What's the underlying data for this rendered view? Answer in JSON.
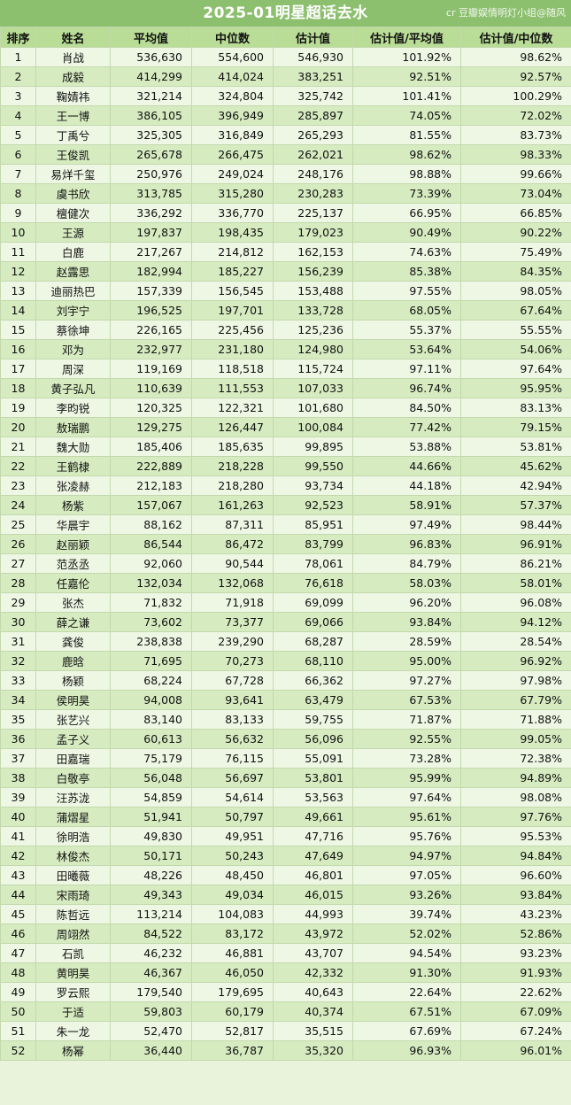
{
  "header": {
    "title": "2025-01明星超话去水",
    "credit": "cr 豆瓣娱情明灯小组@随风"
  },
  "table": {
    "columns": [
      "排序",
      "姓名",
      "平均值",
      "中位数",
      "估计值",
      "估计值/平均值",
      "估计值/中位数"
    ],
    "rows": [
      [
        "1",
        "肖战",
        "536,630",
        "554,600",
        "546,930",
        "101.92%",
        "98.62%"
      ],
      [
        "2",
        "成毅",
        "414,299",
        "414,024",
        "383,251",
        "92.51%",
        "92.57%"
      ],
      [
        "3",
        "鞠婧祎",
        "321,214",
        "324,804",
        "325,742",
        "101.41%",
        "100.29%"
      ],
      [
        "4",
        "王一博",
        "386,105",
        "396,949",
        "285,897",
        "74.05%",
        "72.02%"
      ],
      [
        "5",
        "丁禹兮",
        "325,305",
        "316,849",
        "265,293",
        "81.55%",
        "83.73%"
      ],
      [
        "6",
        "王俊凯",
        "265,678",
        "266,475",
        "262,021",
        "98.62%",
        "98.33%"
      ],
      [
        "7",
        "易烊千玺",
        "250,976",
        "249,024",
        "248,176",
        "98.88%",
        "99.66%"
      ],
      [
        "8",
        "虞书欣",
        "313,785",
        "315,280",
        "230,283",
        "73.39%",
        "73.04%"
      ],
      [
        "9",
        "檀健次",
        "336,292",
        "336,770",
        "225,137",
        "66.95%",
        "66.85%"
      ],
      [
        "10",
        "王源",
        "197,837",
        "198,435",
        "179,023",
        "90.49%",
        "90.22%"
      ],
      [
        "11",
        "白鹿",
        "217,267",
        "214,812",
        "162,153",
        "74.63%",
        "75.49%"
      ],
      [
        "12",
        "赵露思",
        "182,994",
        "185,227",
        "156,239",
        "85.38%",
        "84.35%"
      ],
      [
        "13",
        "迪丽热巴",
        "157,339",
        "156,545",
        "153,488",
        "97.55%",
        "98.05%"
      ],
      [
        "14",
        "刘宇宁",
        "196,525",
        "197,701",
        "133,728",
        "68.05%",
        "67.64%"
      ],
      [
        "15",
        "蔡徐坤",
        "226,165",
        "225,456",
        "125,236",
        "55.37%",
        "55.55%"
      ],
      [
        "16",
        "邓为",
        "232,977",
        "231,180",
        "124,980",
        "53.64%",
        "54.06%"
      ],
      [
        "17",
        "周深",
        "119,169",
        "118,518",
        "115,724",
        "97.11%",
        "97.64%"
      ],
      [
        "18",
        "黄子弘凡",
        "110,639",
        "111,553",
        "107,033",
        "96.74%",
        "95.95%"
      ],
      [
        "19",
        "李昀锐",
        "120,325",
        "122,321",
        "101,680",
        "84.50%",
        "83.13%"
      ],
      [
        "20",
        "敖瑞鹏",
        "129,275",
        "126,447",
        "100,084",
        "77.42%",
        "79.15%"
      ],
      [
        "21",
        "魏大勋",
        "185,406",
        "185,635",
        "99,895",
        "53.88%",
        "53.81%"
      ],
      [
        "22",
        "王鹤棣",
        "222,889",
        "218,228",
        "99,550",
        "44.66%",
        "45.62%"
      ],
      [
        "23",
        "张凌赫",
        "212,183",
        "218,280",
        "93,734",
        "44.18%",
        "42.94%"
      ],
      [
        "24",
        "杨紫",
        "157,067",
        "161,263",
        "92,523",
        "58.91%",
        "57.37%"
      ],
      [
        "25",
        "华晨宇",
        "88,162",
        "87,311",
        "85,951",
        "97.49%",
        "98.44%"
      ],
      [
        "26",
        "赵丽颖",
        "86,544",
        "86,472",
        "83,799",
        "96.83%",
        "96.91%"
      ],
      [
        "27",
        "范丞丞",
        "92,060",
        "90,544",
        "78,061",
        "84.79%",
        "86.21%"
      ],
      [
        "28",
        "任嘉伦",
        "132,034",
        "132,068",
        "76,618",
        "58.03%",
        "58.01%"
      ],
      [
        "29",
        "张杰",
        "71,832",
        "71,918",
        "69,099",
        "96.20%",
        "96.08%"
      ],
      [
        "30",
        "薛之谦",
        "73,602",
        "73,377",
        "69,066",
        "93.84%",
        "94.12%"
      ],
      [
        "31",
        "龚俊",
        "238,838",
        "239,290",
        "68,287",
        "28.59%",
        "28.54%"
      ],
      [
        "32",
        "鹿晗",
        "71,695",
        "70,273",
        "68,110",
        "95.00%",
        "96.92%"
      ],
      [
        "33",
        "杨颖",
        "68,224",
        "67,728",
        "66,362",
        "97.27%",
        "97.98%"
      ],
      [
        "34",
        "侯明昊",
        "94,008",
        "93,641",
        "63,479",
        "67.53%",
        "67.79%"
      ],
      [
        "35",
        "张艺兴",
        "83,140",
        "83,133",
        "59,755",
        "71.87%",
        "71.88%"
      ],
      [
        "36",
        "孟子义",
        "60,613",
        "56,632",
        "56,096",
        "92.55%",
        "99.05%"
      ],
      [
        "37",
        "田嘉瑞",
        "75,179",
        "76,115",
        "55,091",
        "73.28%",
        "72.38%"
      ],
      [
        "38",
        "白敬亭",
        "56,048",
        "56,697",
        "53,801",
        "95.99%",
        "94.89%"
      ],
      [
        "39",
        "汪苏泷",
        "54,859",
        "54,614",
        "53,563",
        "97.64%",
        "98.08%"
      ],
      [
        "40",
        "蒲熠星",
        "51,941",
        "50,797",
        "49,661",
        "95.61%",
        "97.76%"
      ],
      [
        "41",
        "徐明浩",
        "49,830",
        "49,951",
        "47,716",
        "95.76%",
        "95.53%"
      ],
      [
        "42",
        "林俊杰",
        "50,171",
        "50,243",
        "47,649",
        "94.97%",
        "94.84%"
      ],
      [
        "43",
        "田曦薇",
        "48,226",
        "48,450",
        "46,801",
        "97.05%",
        "96.60%"
      ],
      [
        "44",
        "宋雨琦",
        "49,343",
        "49,034",
        "46,015",
        "93.26%",
        "93.84%"
      ],
      [
        "45",
        "陈哲远",
        "113,214",
        "104,083",
        "44,993",
        "39.74%",
        "43.23%"
      ],
      [
        "46",
        "周翊然",
        "84,522",
        "83,172",
        "43,972",
        "52.02%",
        "52.86%"
      ],
      [
        "47",
        "石凯",
        "46,232",
        "46,881",
        "43,707",
        "94.54%",
        "93.23%"
      ],
      [
        "48",
        "黄明昊",
        "46,367",
        "46,050",
        "42,332",
        "91.30%",
        "91.93%"
      ],
      [
        "49",
        "罗云熙",
        "179,540",
        "179,695",
        "40,643",
        "22.64%",
        "22.62%"
      ],
      [
        "50",
        "于适",
        "59,803",
        "60,179",
        "40,374",
        "67.51%",
        "67.09%"
      ],
      [
        "51",
        "朱一龙",
        "52,470",
        "52,817",
        "35,515",
        "67.69%",
        "67.24%"
      ],
      [
        "52",
        "杨幂",
        "36,440",
        "36,787",
        "35,320",
        "96.93%",
        "96.01%"
      ]
    ]
  }
}
